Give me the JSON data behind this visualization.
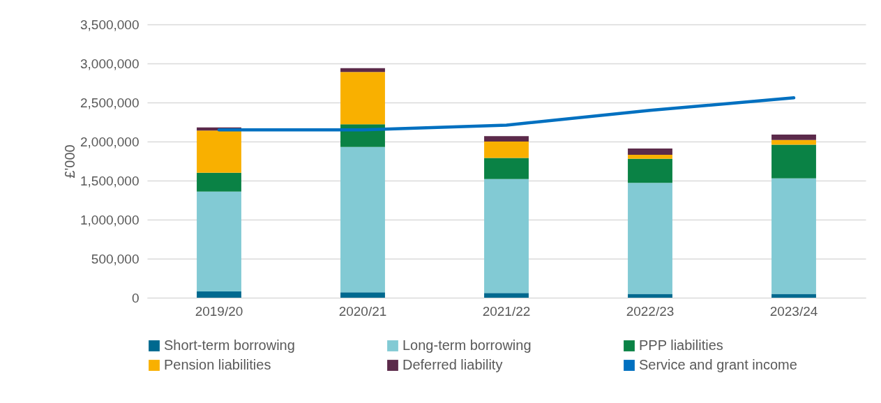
{
  "chart_data": {
    "type": "bar",
    "stacked": true,
    "ylabel": "£'000",
    "categories": [
      "2019/20",
      "2020/21",
      "2021/22",
      "2022/23",
      "2023/24"
    ],
    "series": [
      {
        "name": "Short-term borrowing",
        "color": "#00698f",
        "values": [
          80000,
          70000,
          60000,
          50000,
          50000
        ]
      },
      {
        "name": "Long-term borrowing",
        "color": "#82cad4",
        "values": [
          1280000,
          1860000,
          1460000,
          1420000,
          1480000
        ]
      },
      {
        "name": "PPP liabilities",
        "color": "#0a8245",
        "values": [
          240000,
          290000,
          270000,
          310000,
          430000
        ]
      },
      {
        "name": "Pension liabilities",
        "color": "#f9b000",
        "values": [
          540000,
          670000,
          210000,
          50000,
          60000
        ]
      },
      {
        "name": "Deferred liability",
        "color": "#5b2a4a",
        "values": [
          40000,
          50000,
          70000,
          80000,
          70000
        ]
      },
      {
        "name": "Service and grant income",
        "type": "line",
        "color": "#0070c0",
        "values": [
          2150000,
          2150000,
          2210000,
          2400000,
          2560000
        ]
      }
    ],
    "ylim": [
      0,
      3500000
    ],
    "yticks": [
      0,
      {
        "value": 500000,
        "label": "500,000"
      },
      {
        "value": 1000000,
        "label": "1,000,000"
      },
      {
        "value": 1500000,
        "label": "1,500,000"
      },
      {
        "value": 2000000,
        "label": "2,000,000"
      },
      {
        "value": 2500000,
        "label": "2,500,000"
      },
      {
        "value": 3000000,
        "label": "3,000,000"
      },
      {
        "value": 3500000,
        "label": "3,500,000"
      }
    ],
    "grid": "y",
    "legend": "bottom"
  }
}
